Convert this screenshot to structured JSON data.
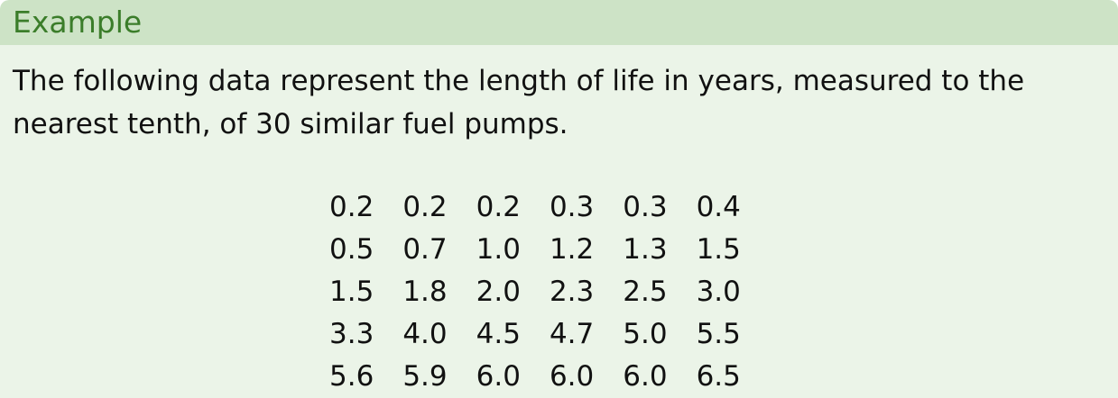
{
  "block": {
    "title": "Example",
    "text": "The following data represent the length of life in years, measured to the nearest tenth, of 30 similar fuel pumps."
  },
  "data": {
    "rows": [
      [
        "0.2",
        "0.2",
        "0.2",
        "0.3",
        "0.3",
        "0.4"
      ],
      [
        "0.5",
        "0.7",
        "1.0",
        "1.2",
        "1.3",
        "1.5"
      ],
      [
        "1.5",
        "1.8",
        "2.0",
        "2.3",
        "2.5",
        "3.0"
      ],
      [
        "3.3",
        "4.0",
        "4.5",
        "4.7",
        "5.0",
        "5.5"
      ],
      [
        "5.6",
        "5.9",
        "6.0",
        "6.0",
        "6.0",
        "6.5"
      ]
    ]
  },
  "colors": {
    "header_bg": "#cde3c6",
    "body_bg": "#ebf4e8",
    "title": "#3b7d2a"
  }
}
